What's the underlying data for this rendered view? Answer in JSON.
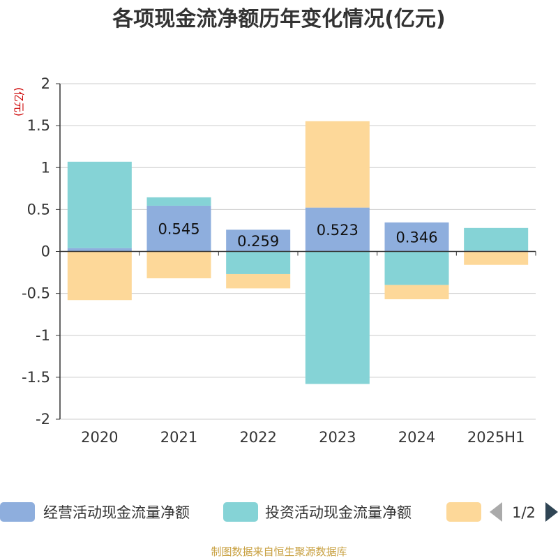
{
  "chart_data": {
    "type": "bar",
    "stacked": true,
    "title": "各项现金流净额历年变化情况(亿元)",
    "ylabel": "(亿元)",
    "xlabel": "",
    "ylim": [
      -2,
      2
    ],
    "yticks": [
      2,
      1.5,
      1,
      0.5,
      0,
      -0.5,
      -1,
      -1.5,
      -2
    ],
    "ytick_labels": [
      "2",
      "1.5",
      "1",
      "0.5",
      "0",
      "-0.5",
      "-1",
      "-1.5",
      "-2"
    ],
    "categories": [
      "2020",
      "2021",
      "2022",
      "2023",
      "2024",
      "2025H1"
    ],
    "grid": true,
    "legend_position": "bottom",
    "series": [
      {
        "name": "经营活动现金流量净额",
        "color": "#8eaedd",
        "values": [
          0.04,
          0.545,
          0.259,
          0.523,
          0.346,
          0.01
        ],
        "labels": [
          "",
          "0.545",
          "0.259",
          "0.523",
          "0.346",
          ""
        ]
      },
      {
        "name": "投资活动现金流量净额",
        "color": "#85d3d6",
        "values": [
          1.03,
          0.1,
          -0.27,
          -1.58,
          -0.4,
          0.27
        ],
        "labels": [
          "",
          "",
          "",
          "",
          "",
          ""
        ]
      },
      {
        "name": "",
        "color": "#fdd899",
        "values": [
          -0.58,
          -0.32,
          -0.17,
          1.03,
          -0.17,
          -0.16
        ],
        "labels": [
          "",
          "",
          "",
          "",
          "",
          ""
        ]
      }
    ],
    "legend_page": "1/2",
    "source": "制图数据来自恒生聚源数据库"
  },
  "colors": {
    "axis": "#333333",
    "grid": "#cccccc",
    "legend_arrow_prev": "#aaaaaa",
    "legend_arrow_next": "#2f4554"
  },
  "legend": {
    "prev_icon": "triangle-left-icon",
    "next_icon": "triangle-right-icon"
  }
}
